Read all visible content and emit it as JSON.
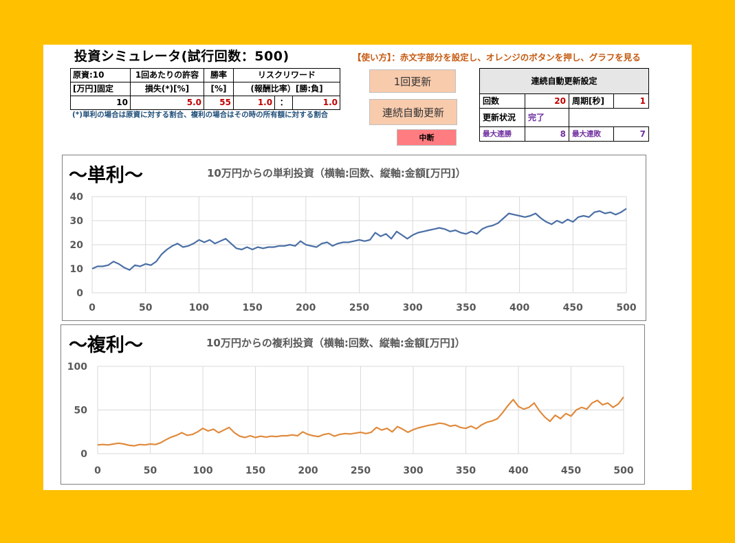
{
  "title": "投資シミュレータ(試行回数：500)",
  "howto": "【使い方】：赤文字部分を設定し、オレンジのボタンを押し、グラフを見る",
  "params": {
    "capital_h1": "原資:10",
    "capital_h2": "[万円]固定",
    "loss_h1": "1回あたりの許容",
    "loss_h2": "損失(*)[%]",
    "win_h1": "勝率",
    "win_h2": "[%]",
    "rr_h1": "リスクリワード",
    "rr_h2": "(報酬比率）[勝:負]",
    "capital": "10",
    "loss": "5.0",
    "win": "55",
    "reward": "1.0",
    "sep": "：",
    "risk": "1.0"
  },
  "note": "(*)単利の場合は原資に対する割合、複利の場合はその時の所有額に対する割合",
  "buttons": {
    "update_once": "1回更新",
    "auto_update": "連続自動更新",
    "stop": "中断"
  },
  "auto": {
    "header": "連続自動更新設定",
    "count_label": "回数",
    "count": "20",
    "period_label": "周期[秒]",
    "period": "1",
    "status_label": "更新状況",
    "status": "完了",
    "max_win_label": "最大連勝",
    "max_win": "8",
    "max_loss_label": "最大連敗",
    "max_loss": "7"
  },
  "colors": {
    "background": "#FFC000",
    "simple_series": "#4A6FA5",
    "compound_series": "#E08A3C",
    "input_red": "#C00000",
    "button_orange": "#F8CBAD",
    "stop_red": "#FF7C80"
  },
  "chart_data": [
    {
      "type": "line",
      "heading": "～単利～",
      "title": "10万円からの単利投資（横軸:回数、縦軸:金額[万円]）",
      "x_ticks": [
        "0",
        "50",
        "100",
        "150",
        "200",
        "250",
        "300",
        "350",
        "400",
        "450",
        "500"
      ],
      "y_ticks": [
        "0",
        "10",
        "20",
        "30",
        "40"
      ],
      "xlim": [
        0,
        500
      ],
      "ylim": [
        0,
        40
      ],
      "grid": true,
      "series_color": "#4A6FA5",
      "points": [
        [
          0,
          10
        ],
        [
          5,
          11
        ],
        [
          10,
          11
        ],
        [
          15,
          11.5
        ],
        [
          20,
          13
        ],
        [
          25,
          12
        ],
        [
          30,
          10.5
        ],
        [
          35,
          9.5
        ],
        [
          40,
          11.5
        ],
        [
          45,
          11
        ],
        [
          50,
          12
        ],
        [
          55,
          11.5
        ],
        [
          60,
          13
        ],
        [
          65,
          16
        ],
        [
          70,
          18
        ],
        [
          75,
          19.5
        ],
        [
          80,
          20.5
        ],
        [
          85,
          19
        ],
        [
          90,
          19.5
        ],
        [
          95,
          20.5
        ],
        [
          100,
          22
        ],
        [
          105,
          21
        ],
        [
          110,
          22
        ],
        [
          115,
          20.5
        ],
        [
          120,
          21.5
        ],
        [
          125,
          22.5
        ],
        [
          130,
          20.5
        ],
        [
          135,
          18.5
        ],
        [
          140,
          18
        ],
        [
          145,
          19
        ],
        [
          150,
          18
        ],
        [
          155,
          19
        ],
        [
          160,
          18.5
        ],
        [
          165,
          19
        ],
        [
          170,
          19
        ],
        [
          175,
          19.5
        ],
        [
          180,
          19.5
        ],
        [
          185,
          20
        ],
        [
          190,
          19.5
        ],
        [
          195,
          21.5
        ],
        [
          200,
          20
        ],
        [
          205,
          19.5
        ],
        [
          210,
          19
        ],
        [
          215,
          20.5
        ],
        [
          220,
          21
        ],
        [
          225,
          19.5
        ],
        [
          230,
          20.5
        ],
        [
          235,
          21
        ],
        [
          240,
          21
        ],
        [
          245,
          21.5
        ],
        [
          250,
          22
        ],
        [
          255,
          21.5
        ],
        [
          260,
          22
        ],
        [
          265,
          25
        ],
        [
          270,
          23.5
        ],
        [
          275,
          24.5
        ],
        [
          280,
          22.5
        ],
        [
          285,
          25.5
        ],
        [
          290,
          24
        ],
        [
          295,
          22.5
        ],
        [
          300,
          24
        ],
        [
          305,
          25
        ],
        [
          310,
          25.5
        ],
        [
          315,
          26
        ],
        [
          320,
          26.5
        ],
        [
          325,
          27
        ],
        [
          330,
          26.5
        ],
        [
          335,
          25.5
        ],
        [
          340,
          26
        ],
        [
          345,
          25
        ],
        [
          350,
          24.5
        ],
        [
          355,
          25.5
        ],
        [
          360,
          24.5
        ],
        [
          365,
          26.5
        ],
        [
          370,
          27.5
        ],
        [
          375,
          28
        ],
        [
          380,
          29
        ],
        [
          385,
          31
        ],
        [
          390,
          33
        ],
        [
          395,
          32.5
        ],
        [
          400,
          32
        ],
        [
          405,
          31.5
        ],
        [
          410,
          32
        ],
        [
          415,
          33
        ],
        [
          420,
          31
        ],
        [
          425,
          29.5
        ],
        [
          430,
          28.5
        ],
        [
          435,
          30
        ],
        [
          440,
          29
        ],
        [
          445,
          30.5
        ],
        [
          450,
          29.5
        ],
        [
          455,
          31.5
        ],
        [
          460,
          32
        ],
        [
          465,
          31.5
        ],
        [
          470,
          33.5
        ],
        [
          475,
          34
        ],
        [
          480,
          33
        ],
        [
          485,
          33.5
        ],
        [
          490,
          32.5
        ],
        [
          495,
          33.5
        ],
        [
          500,
          35
        ]
      ]
    },
    {
      "type": "line",
      "heading": "～複利～",
      "title": "10万円からの複利投資（横軸:回数、縦軸:金額[万円]）",
      "x_ticks": [
        "0",
        "50",
        "100",
        "150",
        "200",
        "250",
        "300",
        "350",
        "400",
        "450",
        "500"
      ],
      "y_ticks": [
        "0",
        "50",
        "100"
      ],
      "xlim": [
        0,
        500
      ],
      "ylim": [
        0,
        100
      ],
      "grid": true,
      "series_color": "#E08A3C",
      "points": [
        [
          0,
          10
        ],
        [
          5,
          10.5
        ],
        [
          10,
          10
        ],
        [
          15,
          11
        ],
        [
          20,
          12
        ],
        [
          25,
          11
        ],
        [
          30,
          9.5
        ],
        [
          35,
          9
        ],
        [
          40,
          10.5
        ],
        [
          45,
          10
        ],
        [
          50,
          11
        ],
        [
          55,
          10.5
        ],
        [
          60,
          12.5
        ],
        [
          65,
          16
        ],
        [
          70,
          19
        ],
        [
          75,
          21
        ],
        [
          80,
          24
        ],
        [
          85,
          21
        ],
        [
          90,
          22
        ],
        [
          95,
          25
        ],
        [
          100,
          29
        ],
        [
          105,
          26
        ],
        [
          110,
          28
        ],
        [
          115,
          24
        ],
        [
          120,
          27
        ],
        [
          125,
          30
        ],
        [
          130,
          24
        ],
        [
          135,
          20
        ],
        [
          140,
          18.5
        ],
        [
          145,
          20.5
        ],
        [
          150,
          18.5
        ],
        [
          155,
          20
        ],
        [
          160,
          19
        ],
        [
          165,
          20
        ],
        [
          170,
          19.5
        ],
        [
          175,
          20.5
        ],
        [
          180,
          20.5
        ],
        [
          185,
          21.5
        ],
        [
          190,
          20.5
        ],
        [
          195,
          25
        ],
        [
          200,
          22
        ],
        [
          205,
          20.5
        ],
        [
          210,
          19.5
        ],
        [
          215,
          22
        ],
        [
          220,
          23
        ],
        [
          225,
          20
        ],
        [
          230,
          22
        ],
        [
          235,
          23
        ],
        [
          240,
          22.5
        ],
        [
          245,
          23.5
        ],
        [
          250,
          24.5
        ],
        [
          255,
          23
        ],
        [
          260,
          24.5
        ],
        [
          265,
          30
        ],
        [
          270,
          27
        ],
        [
          275,
          29
        ],
        [
          280,
          25
        ],
        [
          285,
          31
        ],
        [
          290,
          28
        ],
        [
          295,
          24.5
        ],
        [
          300,
          27.5
        ],
        [
          305,
          29.5
        ],
        [
          310,
          31
        ],
        [
          315,
          32.5
        ],
        [
          320,
          33.5
        ],
        [
          325,
          35
        ],
        [
          330,
          34
        ],
        [
          335,
          31.5
        ],
        [
          340,
          32.5
        ],
        [
          345,
          30
        ],
        [
          350,
          29
        ],
        [
          355,
          31.5
        ],
        [
          360,
          28.5
        ],
        [
          365,
          33
        ],
        [
          370,
          36
        ],
        [
          375,
          37.5
        ],
        [
          380,
          40
        ],
        [
          385,
          47
        ],
        [
          390,
          55
        ],
        [
          395,
          62
        ],
        [
          400,
          54
        ],
        [
          405,
          51
        ],
        [
          410,
          53
        ],
        [
          415,
          58
        ],
        [
          420,
          49
        ],
        [
          425,
          42
        ],
        [
          430,
          37
        ],
        [
          435,
          44
        ],
        [
          440,
          40
        ],
        [
          445,
          46
        ],
        [
          450,
          43
        ],
        [
          455,
          50
        ],
        [
          460,
          53
        ],
        [
          465,
          51
        ],
        [
          470,
          58
        ],
        [
          475,
          61
        ],
        [
          480,
          56
        ],
        [
          485,
          58
        ],
        [
          490,
          53
        ],
        [
          495,
          57
        ],
        [
          500,
          65
        ]
      ]
    }
  ]
}
